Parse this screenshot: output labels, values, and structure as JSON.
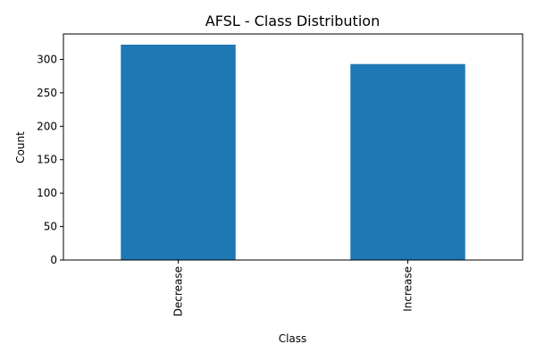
{
  "chart_data": {
    "type": "bar",
    "title": "AFSL - Class Distribution",
    "xlabel": "Class",
    "ylabel": "Count",
    "categories": [
      "Decrease",
      "Increase"
    ],
    "values": [
      322,
      293
    ],
    "ylim": [
      0,
      338
    ],
    "yticks": [
      0,
      50,
      100,
      150,
      200,
      250,
      300
    ],
    "grid": false,
    "legend": "none",
    "bar_color": "#1f77b4",
    "x_tick_rotation": 90
  }
}
